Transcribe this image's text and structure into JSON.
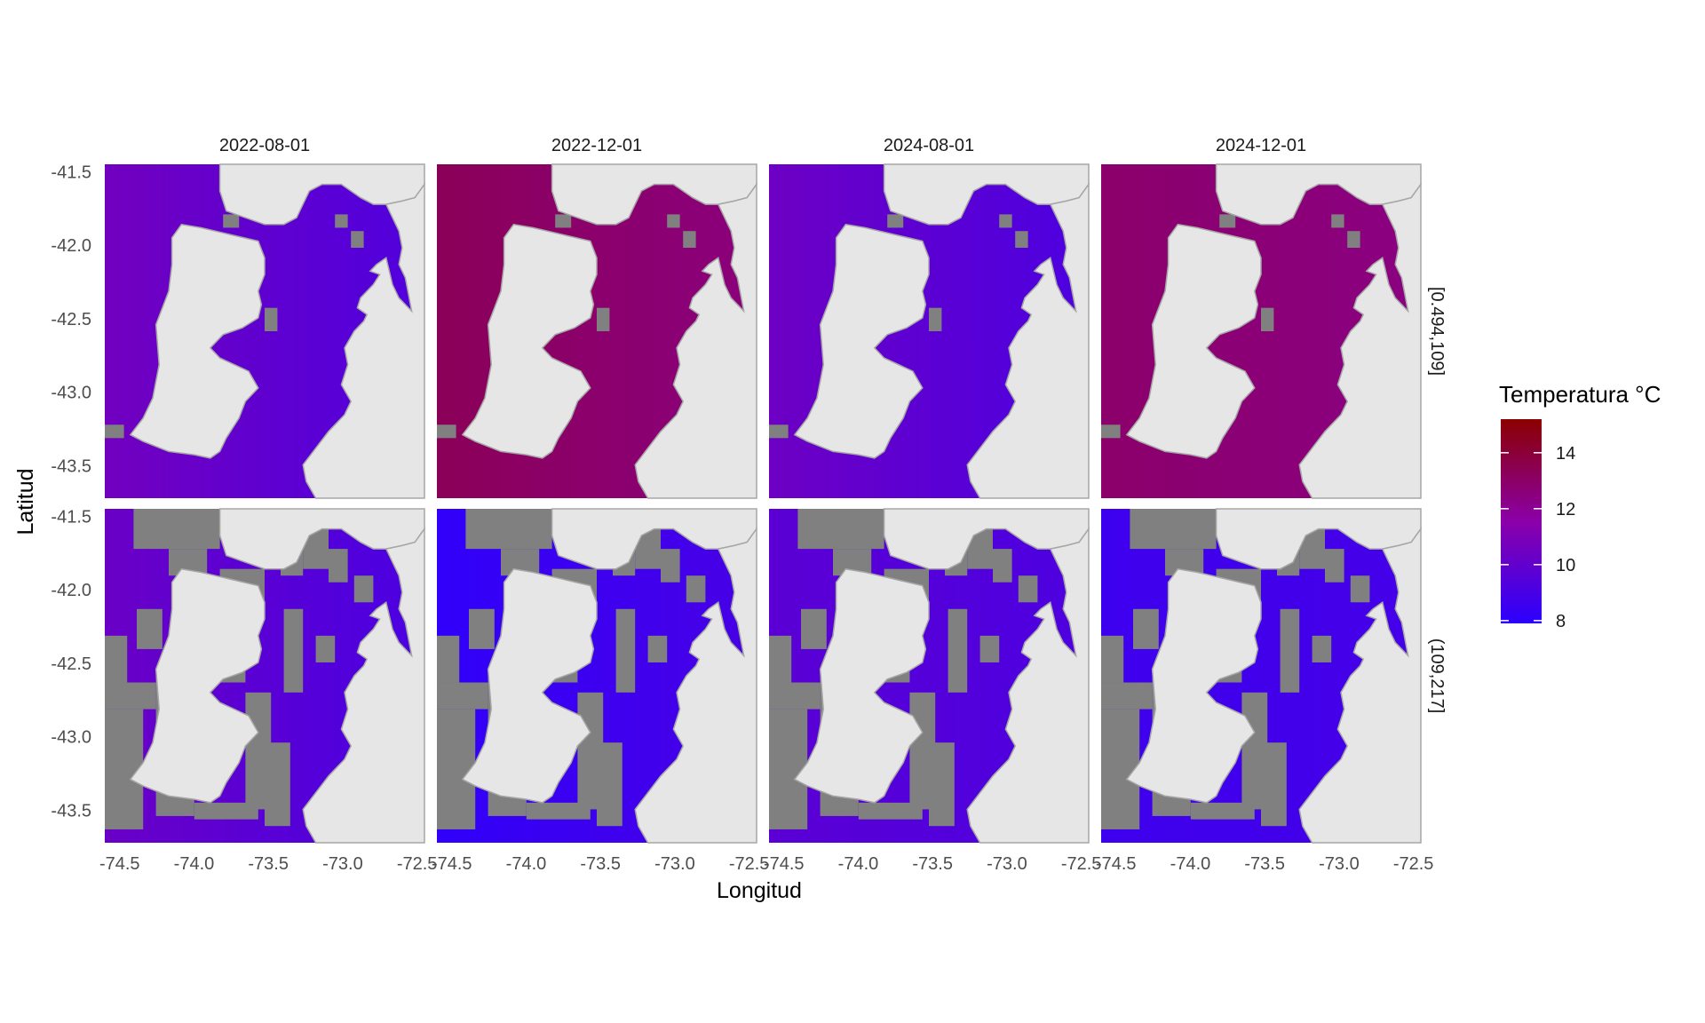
{
  "chart_data": {
    "type": "heatmap",
    "subtype": "faceted geographic raster",
    "facet_cols": [
      "2022-08-01",
      "2022-12-01",
      "2024-08-01",
      "2024-12-01"
    ],
    "facet_rows": [
      "[0.494,109]",
      "(109,217]"
    ],
    "xlabel": "Longitud",
    "ylabel": "Latitud",
    "xlim": [
      -74.6,
      -72.45
    ],
    "ylim": [
      -43.72,
      -41.45
    ],
    "x_ticks": [
      -74.5,
      -74.0,
      -73.5,
      -73.0,
      -72.5
    ],
    "x_tick_labels": [
      "-74.5",
      "-74.0",
      "-73.5",
      "-73.0",
      "-72.5"
    ],
    "y_ticks": [
      -41.5,
      -42.0,
      -42.5,
      -43.0,
      -43.5
    ],
    "y_tick_labels": [
      "-41.5",
      "-42.0",
      "-42.5",
      "-43.0",
      "-43.5"
    ],
    "legend": {
      "title": "Temperatura °C",
      "min": 7.9,
      "max": 15.2,
      "ticks": [
        8,
        10,
        12,
        14
      ],
      "tick_labels": [
        "8",
        "10",
        "12",
        "14"
      ],
      "colors": [
        "#2b00ff",
        "#8b00a8",
        "#8b0000"
      ],
      "placement": "right"
    },
    "colors": {
      "land": "#e6e6e6",
      "no_data": "#808080",
      "panel_background": "#e6e6e6"
    },
    "panel_values": [
      [
        {
          "west": 10.6,
          "east": 9.3
        },
        {
          "west": 13.3,
          "east": 12.5
        },
        {
          "west": 10.4,
          "east": 9.2
        },
        {
          "west": 12.9,
          "east": 12.4
        }
      ],
      [
        {
          "west": 10.3,
          "east": 9.1
        },
        {
          "west": 8.1,
          "east": 9.0
        },
        {
          "west": 9.7,
          "east": 9.2
        },
        {
          "west": 8.6,
          "east": 8.9
        }
      ]
    ]
  }
}
